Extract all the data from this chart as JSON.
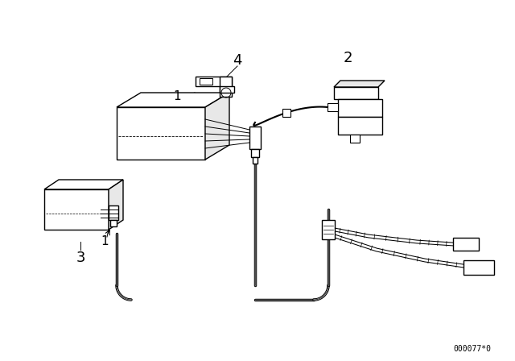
{
  "background_color": "#ffffff",
  "line_color": "#000000",
  "label_color": "#000000",
  "diagram_code": "000077*0",
  "label_fontsize": 13,
  "code_fontsize": 7,
  "figsize": [
    6.4,
    4.48
  ],
  "dpi": 100
}
